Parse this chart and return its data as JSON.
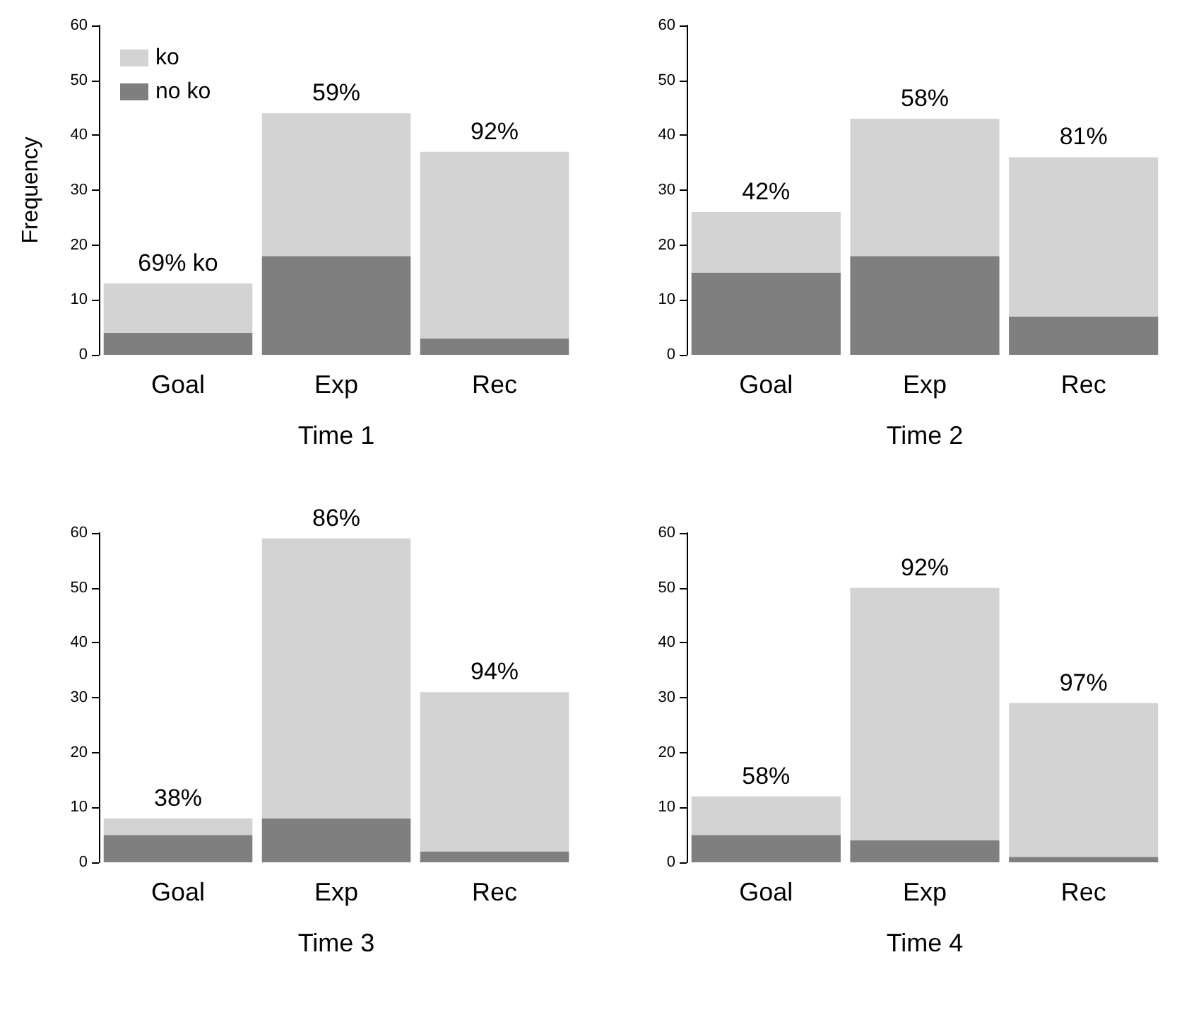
{
  "chart_data": [
    {
      "type": "bar",
      "stacked": true,
      "xlabel": "Time 1",
      "ylabel": "Frequency",
      "categories": [
        "Goal",
        "Exp",
        "Rec"
      ],
      "ylim": [
        0,
        60
      ],
      "yticks": [
        0,
        10,
        20,
        30,
        40,
        50,
        60
      ],
      "legend": "top left",
      "series": [
        {
          "name": "no ko",
          "color": "#7f7f7f",
          "values": [
            4,
            18,
            3
          ]
        },
        {
          "name": "ko",
          "color": "#d3d3d3",
          "values": [
            9,
            26,
            34
          ]
        }
      ],
      "annotations": [
        {
          "text": "69% ko",
          "x": "Goal",
          "y": 13
        },
        {
          "text": "59%",
          "x": "Exp",
          "y": 44
        },
        {
          "text": "92%",
          "x": "Rec",
          "y": 37
        }
      ]
    },
    {
      "type": "bar",
      "stacked": true,
      "xlabel": "Time 2",
      "categories": [
        "Goal",
        "Exp",
        "Rec"
      ],
      "ylim": [
        0,
        60
      ],
      "yticks": [
        0,
        10,
        20,
        30,
        40,
        50,
        60
      ],
      "series": [
        {
          "color": "#7f7f7f",
          "values": [
            15,
            18,
            7
          ]
        },
        {
          "color": "#d3d3d3",
          "values": [
            11,
            25,
            29
          ]
        }
      ],
      "annotations": [
        {
          "text": "42%",
          "x": "Goal",
          "y": 26
        },
        {
          "text": "58%",
          "x": "Exp",
          "y": 43
        },
        {
          "text": "81%",
          "x": "Rec",
          "y": 36
        }
      ]
    },
    {
      "type": "bar",
      "stacked": true,
      "xlabel": "Time 3",
      "categories": [
        "Goal",
        "Exp",
        "Rec"
      ],
      "ylim": [
        0,
        60
      ],
      "yticks": [
        0,
        10,
        20,
        30,
        40,
        50,
        60
      ],
      "series": [
        {
          "color": "#7f7f7f",
          "values": [
            5,
            8,
            2
          ]
        },
        {
          "color": "#d3d3d3",
          "values": [
            3,
            51,
            29
          ]
        }
      ],
      "annotations": [
        {
          "text": "38%",
          "x": "Goal",
          "y": 8
        },
        {
          "text": "86%",
          "x": "Exp",
          "y": 59
        },
        {
          "text": "94%",
          "x": "Rec",
          "y": 31
        }
      ]
    },
    {
      "type": "bar",
      "stacked": true,
      "xlabel": "Time 4",
      "categories": [
        "Goal",
        "Exp",
        "Rec"
      ],
      "ylim": [
        0,
        60
      ],
      "yticks": [
        0,
        10,
        20,
        30,
        40,
        50,
        60
      ],
      "series": [
        {
          "color": "#7f7f7f",
          "values": [
            5,
            4,
            1
          ]
        },
        {
          "color": "#d3d3d3",
          "values": [
            7,
            46,
            28
          ]
        }
      ],
      "annotations": [
        {
          "text": "58%",
          "x": "Goal",
          "y": 12
        },
        {
          "text": "92%",
          "x": "Exp",
          "y": 50
        },
        {
          "text": "97%",
          "x": "Rec",
          "y": 29
        }
      ]
    }
  ]
}
